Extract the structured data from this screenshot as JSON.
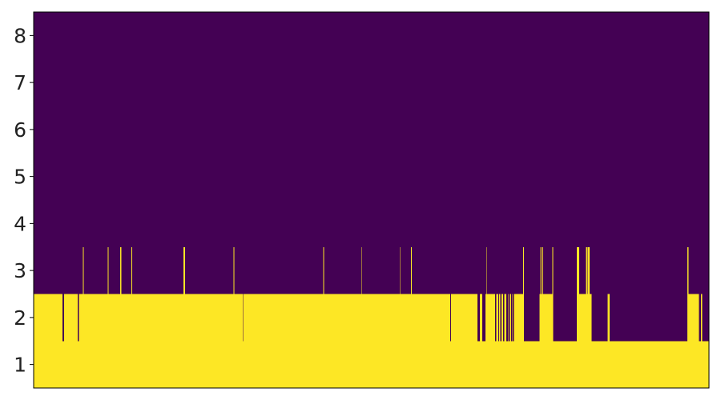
{
  "chart_data": {
    "type": "heatmap",
    "title": "",
    "xlabel": "",
    "ylabel": "",
    "xlim": [
      0,
      1000
    ],
    "ylim": [
      0.5,
      8.5
    ],
    "x_ticks_shown": false,
    "y_ticks": [
      1,
      2,
      3,
      4,
      5,
      6,
      7,
      8
    ],
    "y_tick_labels": [
      "1",
      "2",
      "3",
      "4",
      "5",
      "6",
      "7",
      "8"
    ],
    "grid": false,
    "legend": "none",
    "colors": {
      "low": "#440154",
      "high": "#fde725"
    },
    "baseline_level": 2,
    "segments": [
      [
        0,
        43,
        2
      ],
      [
        43,
        45,
        1
      ],
      [
        45,
        65,
        2
      ],
      [
        65,
        67,
        1
      ],
      [
        67,
        73,
        2
      ],
      [
        73,
        74,
        3
      ],
      [
        74,
        110,
        2
      ],
      [
        110,
        111,
        3
      ],
      [
        111,
        128,
        2
      ],
      [
        128,
        130,
        3
      ],
      [
        130,
        145,
        2
      ],
      [
        145,
        146,
        3
      ],
      [
        146,
        222,
        2
      ],
      [
        222,
        224,
        3
      ],
      [
        224,
        296,
        2
      ],
      [
        296,
        297,
        3
      ],
      [
        297,
        310,
        2
      ],
      [
        310,
        311,
        1
      ],
      [
        311,
        429,
        2
      ],
      [
        429,
        430,
        3
      ],
      [
        430,
        485,
        2
      ],
      [
        485,
        486,
        3
      ],
      [
        486,
        542,
        2
      ],
      [
        542,
        543,
        3
      ],
      [
        543,
        559,
        2
      ],
      [
        559,
        560,
        3
      ],
      [
        560,
        617,
        2
      ],
      [
        617,
        618,
        1
      ],
      [
        618,
        657,
        2
      ],
      [
        657,
        661,
        1
      ],
      [
        661,
        664,
        2
      ],
      [
        664,
        669,
        1
      ],
      [
        669,
        670,
        2
      ],
      [
        670,
        671,
        3
      ],
      [
        671,
        683,
        2
      ],
      [
        683,
        685,
        1
      ],
      [
        685,
        688,
        2
      ],
      [
        688,
        689,
        1
      ],
      [
        689,
        691,
        2
      ],
      [
        691,
        693,
        1
      ],
      [
        693,
        695,
        2
      ],
      [
        695,
        697,
        1
      ],
      [
        697,
        700,
        2
      ],
      [
        700,
        702,
        1
      ],
      [
        702,
        703,
        2
      ],
      [
        703,
        705,
        1
      ],
      [
        705,
        707,
        2
      ],
      [
        707,
        708,
        1
      ],
      [
        708,
        709,
        2
      ],
      [
        709,
        711,
        1
      ],
      [
        711,
        725,
        2
      ],
      [
        725,
        726,
        3
      ],
      [
        726,
        749,
        1
      ],
      [
        749,
        750,
        2
      ],
      [
        750,
        751,
        3
      ],
      [
        751,
        752,
        2
      ],
      [
        752,
        754,
        3
      ],
      [
        754,
        768,
        2
      ],
      [
        768,
        769,
        3
      ],
      [
        769,
        804,
        1
      ],
      [
        804,
        808,
        3
      ],
      [
        808,
        818,
        2
      ],
      [
        818,
        820,
        3
      ],
      [
        820,
        821,
        2
      ],
      [
        821,
        823,
        3
      ],
      [
        823,
        826,
        2
      ],
      [
        826,
        850,
        1
      ],
      [
        850,
        853,
        2
      ],
      [
        853,
        874,
        1
      ],
      [
        874,
        968,
        1
      ],
      [
        968,
        970,
        3
      ],
      [
        970,
        985,
        2
      ],
      [
        985,
        988,
        1
      ],
      [
        988,
        990,
        2
      ],
      [
        990,
        1000,
        1
      ]
    ]
  }
}
